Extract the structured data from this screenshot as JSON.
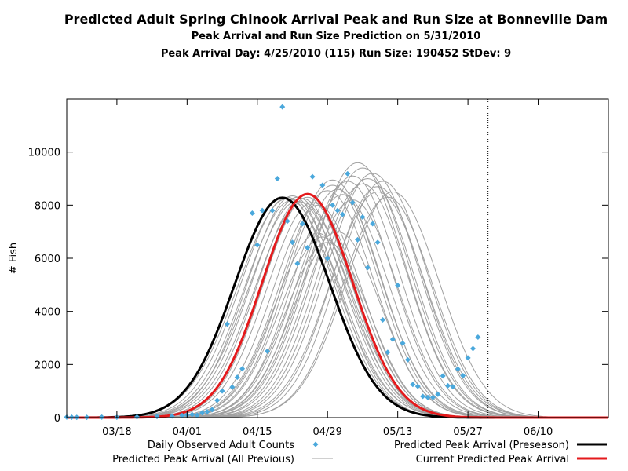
{
  "header": {
    "title": "Predicted Adult Spring Chinook Arrival Peak and Run Size at Bonneville Dam",
    "subtitle": "Peak Arrival and Run Size Prediction on 5/31/2010",
    "info": "Peak Arrival Day: 4/25/2010 (115) Run Size: 190452 StDev: 9"
  },
  "chart_data": {
    "type": "line",
    "title": "Predicted Adult Spring Chinook Arrival Peak and Run Size at Bonneville Dam",
    "ylabel": "# Fish",
    "xlabel": "",
    "xlim": [
      "2010-03-08",
      "2010-06-24"
    ],
    "ylim": [
      0,
      12000
    ],
    "x_ticks": [
      "03/18",
      "04/01",
      "04/15",
      "04/29",
      "05/13",
      "05/27",
      "06/10"
    ],
    "y_ticks": [
      0,
      2000,
      4000,
      6000,
      8000,
      10000
    ],
    "vertical_marker": "2010-05-31",
    "legend": [
      {
        "label": "Daily Observed Adult Counts",
        "style": "diamond",
        "color": "#4aa8dc"
      },
      {
        "label": "Predicted Peak Arrival (All Previous)",
        "style": "thin-line",
        "color": "#a0a0a0"
      },
      {
        "label": "Predicted Peak Arrival (Preseason)",
        "style": "thick-line",
        "color": "#000000"
      },
      {
        "label": "Current Predicted Peak Arrival",
        "style": "thick-line",
        "color": "#e41a1c"
      }
    ],
    "observed": {
      "name": "Daily Observed Adult Counts",
      "color": "#4aa8dc",
      "points": [
        [
          "2010-03-08",
          20
        ],
        [
          "2010-03-09",
          15
        ],
        [
          "2010-03-10",
          10
        ],
        [
          "2010-03-12",
          10
        ],
        [
          "2010-03-15",
          20
        ],
        [
          "2010-03-18",
          15
        ],
        [
          "2010-03-22",
          25
        ],
        [
          "2010-03-26",
          40
        ],
        [
          "2010-03-29",
          60
        ],
        [
          "2010-03-31",
          80
        ],
        [
          "2010-04-01",
          100
        ],
        [
          "2010-04-02",
          120
        ],
        [
          "2010-04-03",
          90
        ],
        [
          "2010-04-04",
          180
        ],
        [
          "2010-04-05",
          220
        ],
        [
          "2010-04-06",
          300
        ],
        [
          "2010-04-07",
          650
        ],
        [
          "2010-04-08",
          1000
        ],
        [
          "2010-04-09",
          3520
        ],
        [
          "2010-04-10",
          1150
        ],
        [
          "2010-04-11",
          1520
        ],
        [
          "2010-04-12",
          1840
        ],
        [
          "2010-04-14",
          7700
        ],
        [
          "2010-04-15",
          6500
        ],
        [
          "2010-04-16",
          7800
        ],
        [
          "2010-04-17",
          2500
        ],
        [
          "2010-04-18",
          7800
        ],
        [
          "2010-04-19",
          9000
        ],
        [
          "2010-04-20",
          11700
        ],
        [
          "2010-04-21",
          7400
        ],
        [
          "2010-04-22",
          6600
        ],
        [
          "2010-04-23",
          5800
        ],
        [
          "2010-04-24",
          7300
        ],
        [
          "2010-04-25",
          6400
        ],
        [
          "2010-04-26",
          9070
        ],
        [
          "2010-04-28",
          8750
        ],
        [
          "2010-04-29",
          6000
        ],
        [
          "2010-04-30",
          8000
        ],
        [
          "2010-05-01",
          7800
        ],
        [
          "2010-05-02",
          7650
        ],
        [
          "2010-05-03",
          9180
        ],
        [
          "2010-05-04",
          8100
        ],
        [
          "2010-05-05",
          6700
        ],
        [
          "2010-05-06",
          7550
        ],
        [
          "2010-05-07",
          5650
        ],
        [
          "2010-05-08",
          7300
        ],
        [
          "2010-05-09",
          6600
        ],
        [
          "2010-05-10",
          3680
        ],
        [
          "2010-05-11",
          2460
        ],
        [
          "2010-05-12",
          2950
        ],
        [
          "2010-05-13",
          4980
        ],
        [
          "2010-05-14",
          2800
        ],
        [
          "2010-05-15",
          2180
        ],
        [
          "2010-05-16",
          1250
        ],
        [
          "2010-05-17",
          1180
        ],
        [
          "2010-05-18",
          800
        ],
        [
          "2010-05-19",
          760
        ],
        [
          "2010-05-20",
          760
        ],
        [
          "2010-05-21",
          880
        ],
        [
          "2010-05-22",
          1570
        ],
        [
          "2010-05-23",
          1200
        ],
        [
          "2010-05-24",
          1160
        ],
        [
          "2010-05-25",
          1830
        ],
        [
          "2010-05-26",
          1580
        ],
        [
          "2010-05-27",
          2250
        ],
        [
          "2010-05-28",
          2600
        ],
        [
          "2010-05-29",
          3030
        ]
      ]
    },
    "preseason_curve": {
      "name": "Predicted Peak Arrival (Preseason)",
      "color": "#000000",
      "peak_date": "2010-04-20",
      "peak": 8280,
      "sigma_days": 9.5
    },
    "current_curve": {
      "name": "Current Predicted Peak Arrival",
      "color": "#e41a1c",
      "peak_date": "2010-04-25",
      "peak": 8420,
      "sigma_days": 9.0
    },
    "previous_curves": {
      "name": "Predicted Peak Arrival (All Previous)",
      "color": "#a0a0a0",
      "curves": [
        [
          "2010-04-20",
          8280,
          9.5
        ],
        [
          "2010-04-21",
          8300,
          9.3
        ],
        [
          "2010-04-21",
          8250,
          9.8
        ],
        [
          "2010-04-22",
          8200,
          9.4
        ],
        [
          "2010-04-22",
          8350,
          9.0
        ],
        [
          "2010-04-23",
          8300,
          9.2
        ],
        [
          "2010-04-23",
          8150,
          9.6
        ],
        [
          "2010-04-24",
          8250,
          9.0
        ],
        [
          "2010-04-24",
          8100,
          9.4
        ],
        [
          "2010-04-25",
          8300,
          8.8
        ],
        [
          "2010-04-26",
          8100,
          9.0
        ],
        [
          "2010-04-27",
          8000,
          8.8
        ],
        [
          "2010-04-27",
          6950,
          8.5
        ],
        [
          "2010-04-28",
          6800,
          8.4
        ],
        [
          "2010-04-29",
          6600,
          8.3
        ],
        [
          "2010-04-29",
          8550,
          9.2
        ],
        [
          "2010-04-30",
          8750,
          9.0
        ],
        [
          "2010-04-30",
          8950,
          9.3
        ],
        [
          "2010-05-01",
          8600,
          8.8
        ],
        [
          "2010-05-01",
          7000,
          8.6
        ],
        [
          "2010-05-02",
          8400,
          9.1
        ],
        [
          "2010-05-03",
          8900,
          9.0
        ],
        [
          "2010-05-04",
          9100,
          9.2
        ],
        [
          "2010-05-04",
          8200,
          8.9
        ],
        [
          "2010-05-05",
          9600,
          9.4
        ],
        [
          "2010-05-06",
          9400,
          9.3
        ],
        [
          "2010-05-06",
          8800,
          9.0
        ],
        [
          "2010-05-07",
          9000,
          9.1
        ],
        [
          "2010-05-08",
          9200,
          9.2
        ],
        [
          "2010-05-09",
          8700,
          9.0
        ],
        [
          "2010-05-09",
          8500,
          9.3
        ],
        [
          "2010-05-10",
          8900,
          9.0
        ],
        [
          "2010-05-11",
          8300,
          8.9
        ],
        [
          "2010-05-12",
          8500,
          9.2
        ]
      ]
    }
  }
}
